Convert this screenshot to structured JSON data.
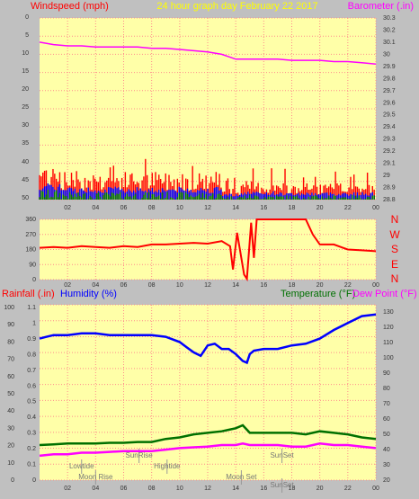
{
  "header": {
    "left": "Windspeed (mph)",
    "center": "24 hour graph day   February 22 2017",
    "right": "Barometer (.in)"
  },
  "colors": {
    "background": "#c0c0c0",
    "plot_bg": "#ffffa8",
    "grid": "#ff8c8c",
    "red_text": "#ff0000",
    "windspeed": "#ff0000",
    "wind_avg": "#0000ff",
    "wind_low": "#008000",
    "barometer": "#ff00ff",
    "humidity": "#0000ff",
    "temperature": "#007000",
    "dewpoint": "#ff00ff",
    "tick_label": "#333333"
  },
  "chart_data": [
    {
      "type": "line",
      "series": [
        {
          "name": "Windspeed (mph)",
          "color": "#ff0000"
        },
        {
          "name": "Barometer (.in)",
          "color": "#ff00ff",
          "x": [
            0,
            1,
            2,
            3,
            4,
            5,
            6,
            7,
            8,
            9,
            10,
            11,
            12,
            13,
            13.5,
            14,
            15,
            16,
            17,
            18,
            19,
            20,
            21,
            22,
            23,
            24
          ],
          "values": [
            30.1,
            30.08,
            30.07,
            30.07,
            30.06,
            30.06,
            30.06,
            30.06,
            30.05,
            30.05,
            30.04,
            30.03,
            30.02,
            30.0,
            29.98,
            29.96,
            29.96,
            29.96,
            29.96,
            29.95,
            29.95,
            29.95,
            29.94,
            29.94,
            29.93,
            29.92
          ]
        }
      ],
      "x_ticks": [
        "02",
        "04",
        "06",
        "08",
        "10",
        "12",
        "14",
        "16",
        "18",
        "20",
        "22",
        "00"
      ],
      "y_left_ticks": [
        "0",
        "5",
        "10",
        "15",
        "20",
        "25",
        "30",
        "35",
        "40",
        "45",
        "50"
      ],
      "y_left_range": [
        0,
        50
      ],
      "y_right_ticks": [
        "28.8",
        "28.9",
        "29",
        "29.1",
        "29.2",
        "29.3",
        "29.4",
        "29.5",
        "29.6",
        "29.7",
        "29.8",
        "29.9",
        "30",
        "30.1",
        "30.2",
        "30.3"
      ],
      "y_right_range": [
        28.8,
        30.3
      ],
      "grid": true
    },
    {
      "type": "line",
      "series": [
        {
          "name": "Wind direction",
          "color": "#ff0000",
          "x": [
            0,
            1,
            2,
            3,
            4,
            5,
            6,
            7,
            8,
            9,
            10,
            11,
            12,
            13,
            13.6,
            13.8,
            14.1,
            14.6,
            14.8,
            15.1,
            15.3,
            15.5,
            16,
            17,
            18,
            19,
            19.5,
            20,
            21,
            22,
            23,
            24
          ],
          "values": [
            190,
            195,
            190,
            200,
            195,
            190,
            200,
            195,
            210,
            210,
            215,
            220,
            215,
            230,
            200,
            60,
            280,
            30,
            5,
            340,
            130,
            360,
            360,
            360,
            360,
            360,
            270,
            210,
            210,
            180,
            175,
            170
          ]
        }
      ],
      "x_ticks": [
        "02",
        "04",
        "06",
        "08",
        "10",
        "12",
        "14",
        "16",
        "18",
        "20",
        "22",
        "00"
      ],
      "y_left_ticks": [
        "0",
        "90",
        "180",
        "270",
        "360"
      ],
      "y_left_range": [
        0,
        360
      ],
      "compass_labels": [
        "N",
        "W",
        "S",
        "E",
        "N"
      ],
      "grid": true
    },
    {
      "type": "line",
      "header_left": [
        "Rainfall (.in)",
        "Humidity (%)"
      ],
      "header_right": [
        "Temperature (°F)",
        "Dew Point (°F)"
      ],
      "series": [
        {
          "name": "Humidity (%)",
          "color": "#0000ff",
          "x": [
            0,
            0.5,
            1,
            2,
            3,
            4,
            5,
            6,
            7,
            8,
            9,
            10,
            10.5,
            11,
            11.5,
            12,
            12.5,
            13,
            13.5,
            14,
            14.5,
            14.8,
            15,
            15.3,
            16,
            17,
            18,
            19,
            20,
            21,
            22,
            23,
            24
          ],
          "values": [
            82,
            83,
            84,
            84,
            85,
            85,
            84,
            84,
            84,
            84,
            83,
            80,
            77,
            74,
            72,
            78,
            79,
            76,
            76,
            73,
            69,
            68,
            73,
            75,
            76,
            76,
            78,
            79,
            82,
            87,
            91,
            95,
            96
          ]
        },
        {
          "name": "Temperature (°F)",
          "color": "#007000",
          "x": [
            0,
            1,
            2,
            3,
            4,
            5,
            6,
            7,
            8,
            9,
            10,
            11,
            12,
            13,
            13.5,
            14,
            14.5,
            15,
            16,
            17,
            18,
            19,
            20,
            21,
            22,
            23,
            24
          ],
          "values": [
            43,
            43.5,
            44,
            44,
            44,
            44.5,
            44.5,
            45,
            45,
            47,
            48,
            50,
            51,
            52,
            53,
            54,
            56,
            51,
            51,
            51,
            51,
            50,
            52,
            51,
            50,
            48,
            47
          ]
        },
        {
          "name": "Dew Point (°F)",
          "color": "#ff00ff",
          "x": [
            0,
            1,
            2,
            3,
            4,
            5,
            6,
            7,
            8,
            9,
            10,
            11,
            12,
            13,
            14,
            14.5,
            15,
            16,
            17,
            18,
            19,
            20,
            21,
            22,
            23,
            24
          ],
          "values": [
            36,
            37,
            37,
            38,
            38,
            38.5,
            39,
            39,
            39,
            40,
            41,
            41.5,
            42,
            43,
            43,
            44,
            43,
            43,
            43,
            42,
            42,
            44,
            43,
            43,
            42,
            41
          ]
        }
      ],
      "x_ticks": [
        "02",
        "04",
        "06",
        "08",
        "10",
        "12",
        "14",
        "16",
        "18",
        "20",
        "22",
        "00"
      ],
      "y_left_humidity_ticks": [
        "0",
        "10",
        "20",
        "30",
        "40",
        "50",
        "60",
        "70",
        "80",
        "90",
        "100"
      ],
      "y_left_rain_ticks": [
        "0",
        "0.1",
        "0.2",
        "0.3",
        "0.4",
        "0.5",
        "0.6",
        "0.7",
        "0.8",
        "0.9",
        "1",
        "1.1"
      ],
      "y_right_ticks": [
        "20",
        "30",
        "40",
        "50",
        "60",
        "70",
        "80",
        "90",
        "100",
        "110",
        "120",
        "130"
      ],
      "y_right_range": [
        20,
        135
      ],
      "events": [
        {
          "label": "Lowtide",
          "x": 3.0,
          "row": 1
        },
        {
          "label": "Moon Rise",
          "x": 4.0,
          "row": 2
        },
        {
          "label": "SunRise",
          "x": 7.1,
          "row": 0
        },
        {
          "label": "Hightide",
          "x": 9.1,
          "row": 1
        },
        {
          "label": "Moon Set",
          "x": 14.4,
          "row": 2
        },
        {
          "label": "SunSet",
          "x": 17.3,
          "row": 0
        },
        {
          "label": "SunSet",
          "x": 17.3,
          "row": 3
        }
      ],
      "grid": true
    }
  ]
}
